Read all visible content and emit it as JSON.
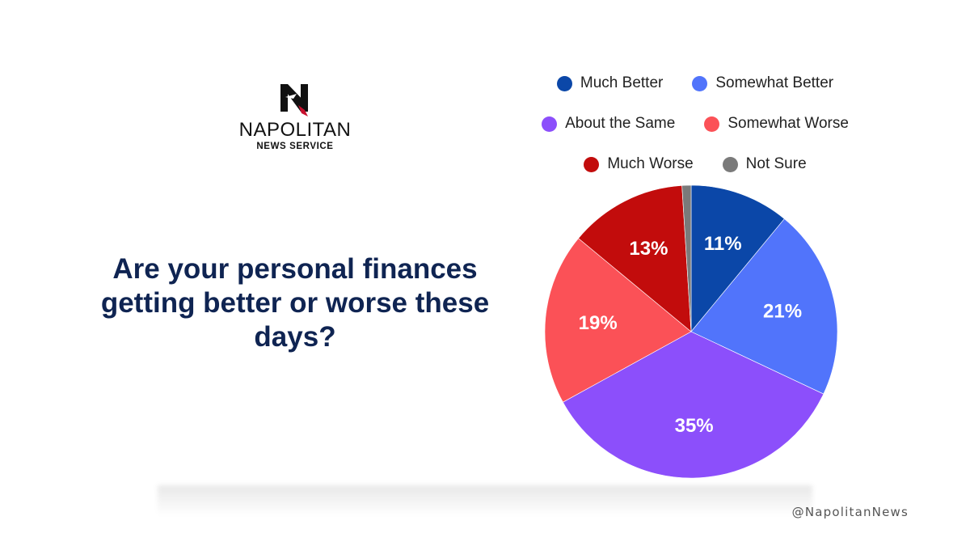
{
  "logo": {
    "mark": "N",
    "brand": "NAPOLITAN",
    "sub": "NEWS SERVICE"
  },
  "question": "Are your personal finances getting better or worse these days?",
  "handle": "@NapolitanNews",
  "chart_data": {
    "type": "pie",
    "title": "Are your personal finances getting better or worse these days?",
    "legend_position": "top",
    "categories": [
      "Much Better",
      "Somewhat Better",
      "About the Same",
      "Somewhat Worse",
      "Much Worse",
      "Not Sure"
    ],
    "values": [
      11,
      21,
      35,
      19,
      13,
      1
    ],
    "labels": [
      "11%",
      "21%",
      "35%",
      "19%",
      "13%",
      ""
    ],
    "colors": [
      "#0b47a8",
      "#5174fb",
      "#8c4ffb",
      "#fb5157",
      "#c20c0c",
      "#7a7a7a"
    ]
  }
}
